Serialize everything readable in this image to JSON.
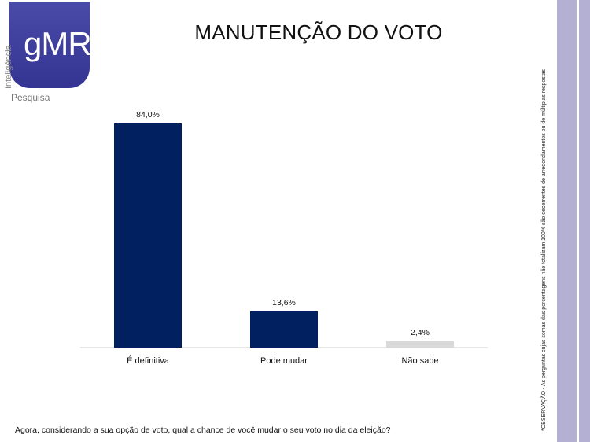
{
  "logo": {
    "brand": "gMR",
    "side_text": "Inteligência",
    "bottom_text": "Pesquisa"
  },
  "title": "MANUTENÇÃO DO VOTO",
  "question": "Agora, considerando a sua opção de voto, qual a chance de você mudar o seu voto no dia da eleição?",
  "note": "*OBSERVAÇÃO - As perguntas cujas somas das porcentagens não totalizam 100% são decorrentes de arredondamentos ou de múltiplas respostas",
  "colors": {
    "bar_primary": "#012060",
    "bar_neutral": "#d9d9d9",
    "stripe": "#b3b0d3"
  },
  "chart_data": {
    "type": "bar",
    "title": "MANUTENÇÃO DO VOTO",
    "categories": [
      "É definitiva",
      "Pode mudar",
      "Não sabe"
    ],
    "values": [
      84.0,
      13.6,
      2.4
    ],
    "value_labels": [
      "84,0%",
      "13,6%",
      "2,4%"
    ],
    "bar_colors": [
      "#012060",
      "#012060",
      "#d9d9d9"
    ],
    "xlabel": "",
    "ylabel": "",
    "ylim": [
      0,
      84.0
    ],
    "grid": false,
    "legend": "none"
  }
}
